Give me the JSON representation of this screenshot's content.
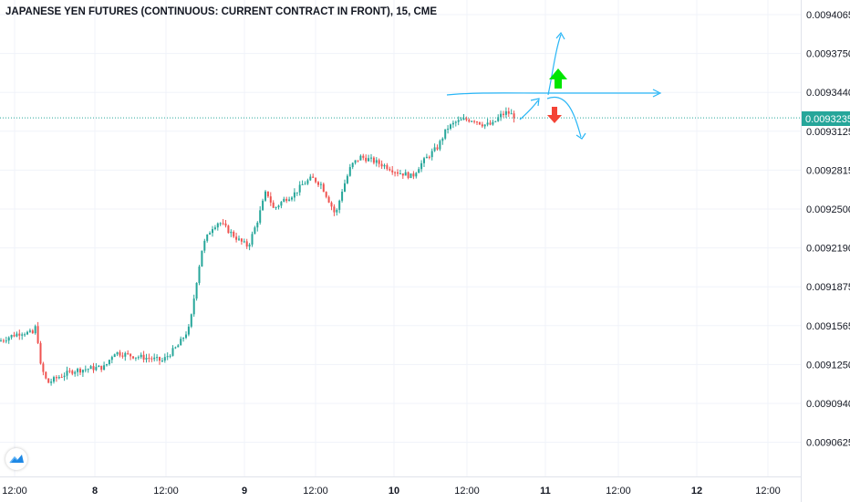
{
  "header": {
    "title": "JAPANESE YEN FUTURES (CONTINUOUS: CURRENT CONTRACT IN FRONT), 15, CME"
  },
  "colors": {
    "up": "#26a69a",
    "down": "#ef5350",
    "grid": "#f0f3fa",
    "drawing": "#29b6f6",
    "arrow_up": "#00e600",
    "arrow_down": "#f44336",
    "price_line": "#26a69a"
  },
  "chart_data": {
    "type": "candlestick",
    "y_axis_ticks": [
      "0.0094065",
      "0.0093750",
      "0.0093440",
      "0.0093125",
      "0.0092815",
      "0.0092500",
      "0.0092190",
      "0.0091875",
      "0.0091565",
      "0.0091250",
      "0.0090940",
      "0.0090625"
    ],
    "x_axis_ticks": [
      "12:00",
      "8",
      "12:00",
      "9",
      "12:00",
      "10",
      "12:00",
      "11",
      "12:00",
      "12",
      "12:00"
    ],
    "ylim": [
      0.00904,
      0.00942
    ],
    "current_price": "0.0093235",
    "grid": true,
    "close_path": [
      [
        0,
        0.009144
      ],
      [
        12,
        0.009148
      ],
      [
        24,
        0.009151
      ],
      [
        36,
        0.00915
      ],
      [
        40,
        0.009157
      ],
      [
        44,
        0.009125
      ],
      [
        52,
        0.00911
      ],
      [
        64,
        0.009115
      ],
      [
        80,
        0.00912
      ],
      [
        100,
        0.009122
      ],
      [
        115,
        0.009123
      ],
      [
        125,
        0.009135
      ],
      [
        145,
        0.009132
      ],
      [
        165,
        0.00913
      ],
      [
        178,
        0.009128
      ],
      [
        195,
        0.00914
      ],
      [
        208,
        0.009155
      ],
      [
        215,
        0.00919
      ],
      [
        222,
        0.00922
      ],
      [
        232,
        0.009235
      ],
      [
        240,
        0.00924
      ],
      [
        250,
        0.009233
      ],
      [
        262,
        0.009225
      ],
      [
        272,
        0.00922
      ],
      [
        282,
        0.00924
      ],
      [
        292,
        0.009265
      ],
      [
        300,
        0.00925
      ],
      [
        312,
        0.009258
      ],
      [
        322,
        0.009262
      ],
      [
        332,
        0.00927
      ],
      [
        342,
        0.009275
      ],
      [
        352,
        0.00927
      ],
      [
        362,
        0.009255
      ],
      [
        368,
        0.009245
      ],
      [
        375,
        0.009265
      ],
      [
        385,
        0.009285
      ],
      [
        395,
        0.009292
      ],
      [
        405,
        0.00929
      ],
      [
        415,
        0.009287
      ],
      [
        425,
        0.009284
      ],
      [
        435,
        0.00928
      ],
      [
        445,
        0.009278
      ],
      [
        452,
        0.009276
      ],
      [
        460,
        0.009285
      ],
      [
        470,
        0.009293
      ],
      [
        480,
        0.0093
      ],
      [
        490,
        0.009315
      ],
      [
        500,
        0.00932
      ],
      [
        510,
        0.009322
      ],
      [
        520,
        0.009322
      ],
      [
        530,
        0.009318
      ],
      [
        540,
        0.009318
      ],
      [
        548,
        0.009325
      ],
      [
        556,
        0.009328
      ],
      [
        566,
        0.009324
      ]
    ]
  }
}
